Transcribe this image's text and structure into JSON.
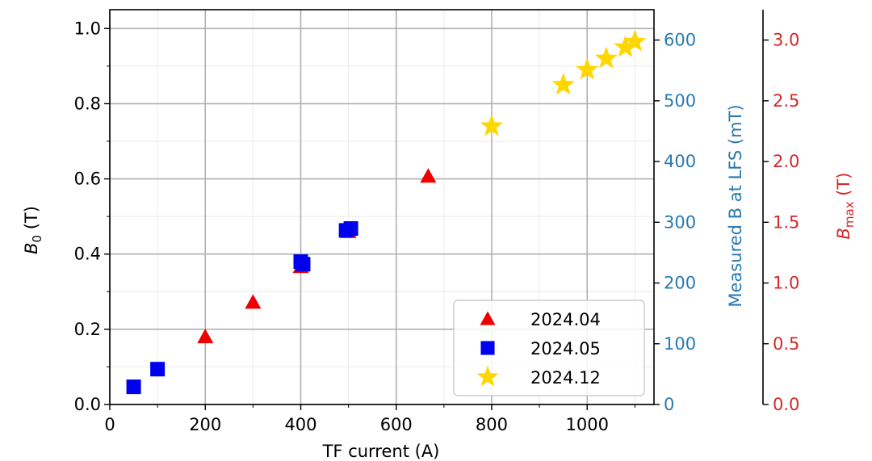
{
  "chart_data": {
    "type": "scatter",
    "xlabel": "TF current (A)",
    "ylabel": "B",
    "ylabel_sub": "0",
    "ylabel_unit": " (T)",
    "xlim": [
      0,
      1140
    ],
    "ylim": [
      0,
      1.05
    ],
    "xticks": [
      0,
      200,
      400,
      600,
      800,
      1000
    ],
    "yticks": [
      0.0,
      0.2,
      0.4,
      0.6,
      0.8,
      1.0
    ],
    "xtick_labels": [
      "0",
      "200",
      "400",
      "600",
      "800",
      "1000"
    ],
    "ytick_labels": [
      "0.0",
      "0.2",
      "0.4",
      "0.6",
      "0.8",
      "1.0"
    ],
    "grid": true,
    "legend_position": "bottom-right",
    "right_axis_1": {
      "label": "Measured B at LFS (mT)",
      "color": "#2a7ab0",
      "lim": [
        0,
        650
      ],
      "ticks": [
        0,
        100,
        200,
        300,
        400,
        500,
        600
      ],
      "tick_labels": [
        "0",
        "100",
        "200",
        "300",
        "400",
        "500",
        "600"
      ]
    },
    "right_axis_2": {
      "label": "B",
      "label_sub": "max",
      "label_unit": " (T)",
      "color": "#d62728",
      "lim": [
        0,
        3.25
      ],
      "ticks": [
        0.0,
        0.5,
        1.0,
        1.5,
        2.0,
        2.5,
        3.0
      ],
      "tick_labels": [
        "0.0",
        "0.5",
        "1.0",
        "1.5",
        "2.0",
        "2.5",
        "3.0"
      ]
    },
    "series": [
      {
        "name": "2024.04",
        "marker": "triangle",
        "color": "#ee0000",
        "x": [
          200,
          300,
          400,
          500,
          667
        ],
        "y": [
          0.18,
          0.272,
          0.367,
          0.46,
          0.607
        ]
      },
      {
        "name": "2024.05",
        "marker": "square",
        "color": "#0000ee",
        "x": [
          50,
          100,
          400,
          405,
          495,
          505
        ],
        "y": [
          0.047,
          0.094,
          0.38,
          0.373,
          0.463,
          0.468
        ]
      },
      {
        "name": "2024.12",
        "marker": "star",
        "color": "#ffd700",
        "x": [
          800,
          950,
          1000,
          1040,
          1080,
          1100
        ],
        "y": [
          0.74,
          0.85,
          0.89,
          0.92,
          0.95,
          0.965
        ]
      }
    ]
  }
}
